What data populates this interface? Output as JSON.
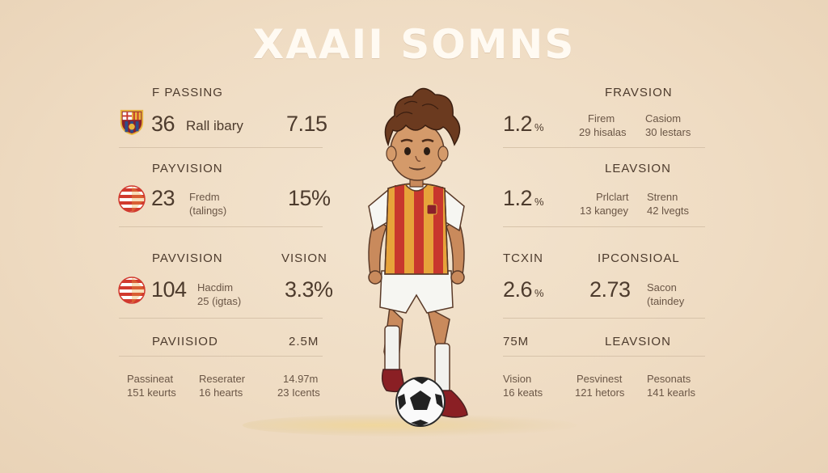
{
  "title": "XAAII SOMNS",
  "left": {
    "row1": {
      "header": "F PASSING",
      "main": "36",
      "main_label": "Rall ibary",
      "side": "7.15"
    },
    "row2": {
      "header": "PAYVISION",
      "main": "23",
      "detail_line1": "Fredm",
      "detail_line2": "(talings)",
      "side": "15%"
    },
    "row3": {
      "header": "PAVVISION",
      "header_right": "VISION",
      "main": "104",
      "detail_line1": "Hacdim",
      "detail_line2": "25 (igtas)",
      "side": "3.3%"
    },
    "row4": {
      "header": "PAVIISIOD",
      "header_right": "2.5M",
      "col1_line1": "Passineat",
      "col1_line2": "151 keurts",
      "col2_line1": "Reserater",
      "col2_line2": "16 hearts",
      "col3_line1": "14.97m",
      "col3_line2": "23 Icents"
    }
  },
  "right": {
    "row1": {
      "header": "FRAVSION",
      "main": "1.2",
      "main_sub": "%",
      "col1_line1": "Firem",
      "col1_line2": "29 hisalas",
      "col2_line1": "Casiom",
      "col2_line2": "30 lestars"
    },
    "row2": {
      "header": "LEAVSION",
      "main": "1.2",
      "main_sub": "%",
      "col1_line1": "Prlclart",
      "col1_line2": "13 kangey",
      "col2_line1": "Strenn",
      "col2_line2": "42 lvegts"
    },
    "row3": {
      "header_left": "TCXIN",
      "header_right": "IPCONSIOAL",
      "main": "2.6",
      "main_sub": "%",
      "main2": "2.73",
      "detail_line1": "Sacon",
      "detail_line2": "(taindey"
    },
    "row4": {
      "header_left": "75M",
      "header_right": "LEAVSION",
      "col1_line1": "Vision",
      "col1_line2": "16 keats",
      "col2_line1": "Pesvinest",
      "col2_line2": "121 hetors",
      "col3_line1": "Pesonats",
      "col3_line2": "141 kearls"
    }
  },
  "colors": {
    "background": "#efdcc3",
    "title": "#fffaf2",
    "text": "#4d3b2d",
    "divider": "#d7c3aa",
    "shirt_red": "#c8372d",
    "shirt_gold": "#e7a33a"
  },
  "icons": [
    "club-crest-icon",
    "striped-emblem-icon",
    "striped-emblem-icon"
  ]
}
